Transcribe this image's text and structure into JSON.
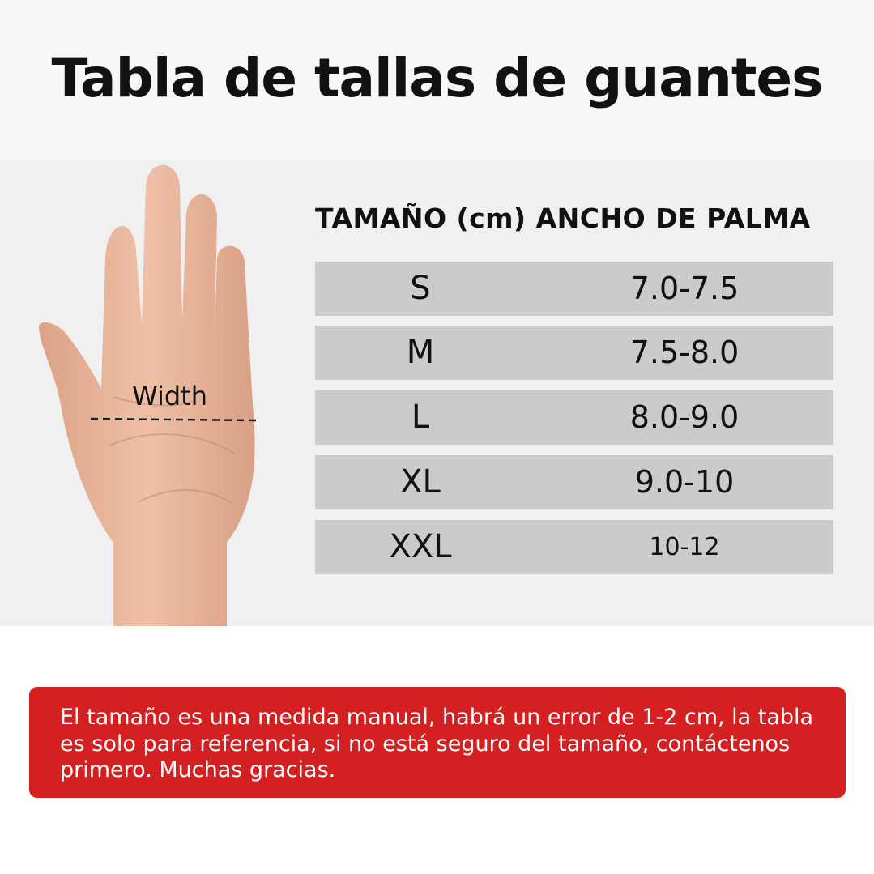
{
  "title": "Tabla de tallas de guantes",
  "hand_label": "Width",
  "table": {
    "header": "TAMAÑO (cm) ANCHO DE PALMA",
    "rows": [
      {
        "size": "S",
        "width": "7.0-7.5"
      },
      {
        "size": "M",
        "width": "7.5-8.0"
      },
      {
        "size": "L",
        "width": "8.0-9.0"
      },
      {
        "size": "XL",
        "width": "9.0-10"
      },
      {
        "size": "XXL",
        "width": "10-12"
      }
    ]
  },
  "note": "El tamaño es una medida manual, habrá un error de 1-2 cm, la tabla es solo para referencia, si no está seguro del tamaño, contáctenos primero. Muchas gracias.",
  "colors": {
    "note_bg": "#d42020",
    "row_bg": "#cbcbcb",
    "skin": "#e8b49a"
  }
}
